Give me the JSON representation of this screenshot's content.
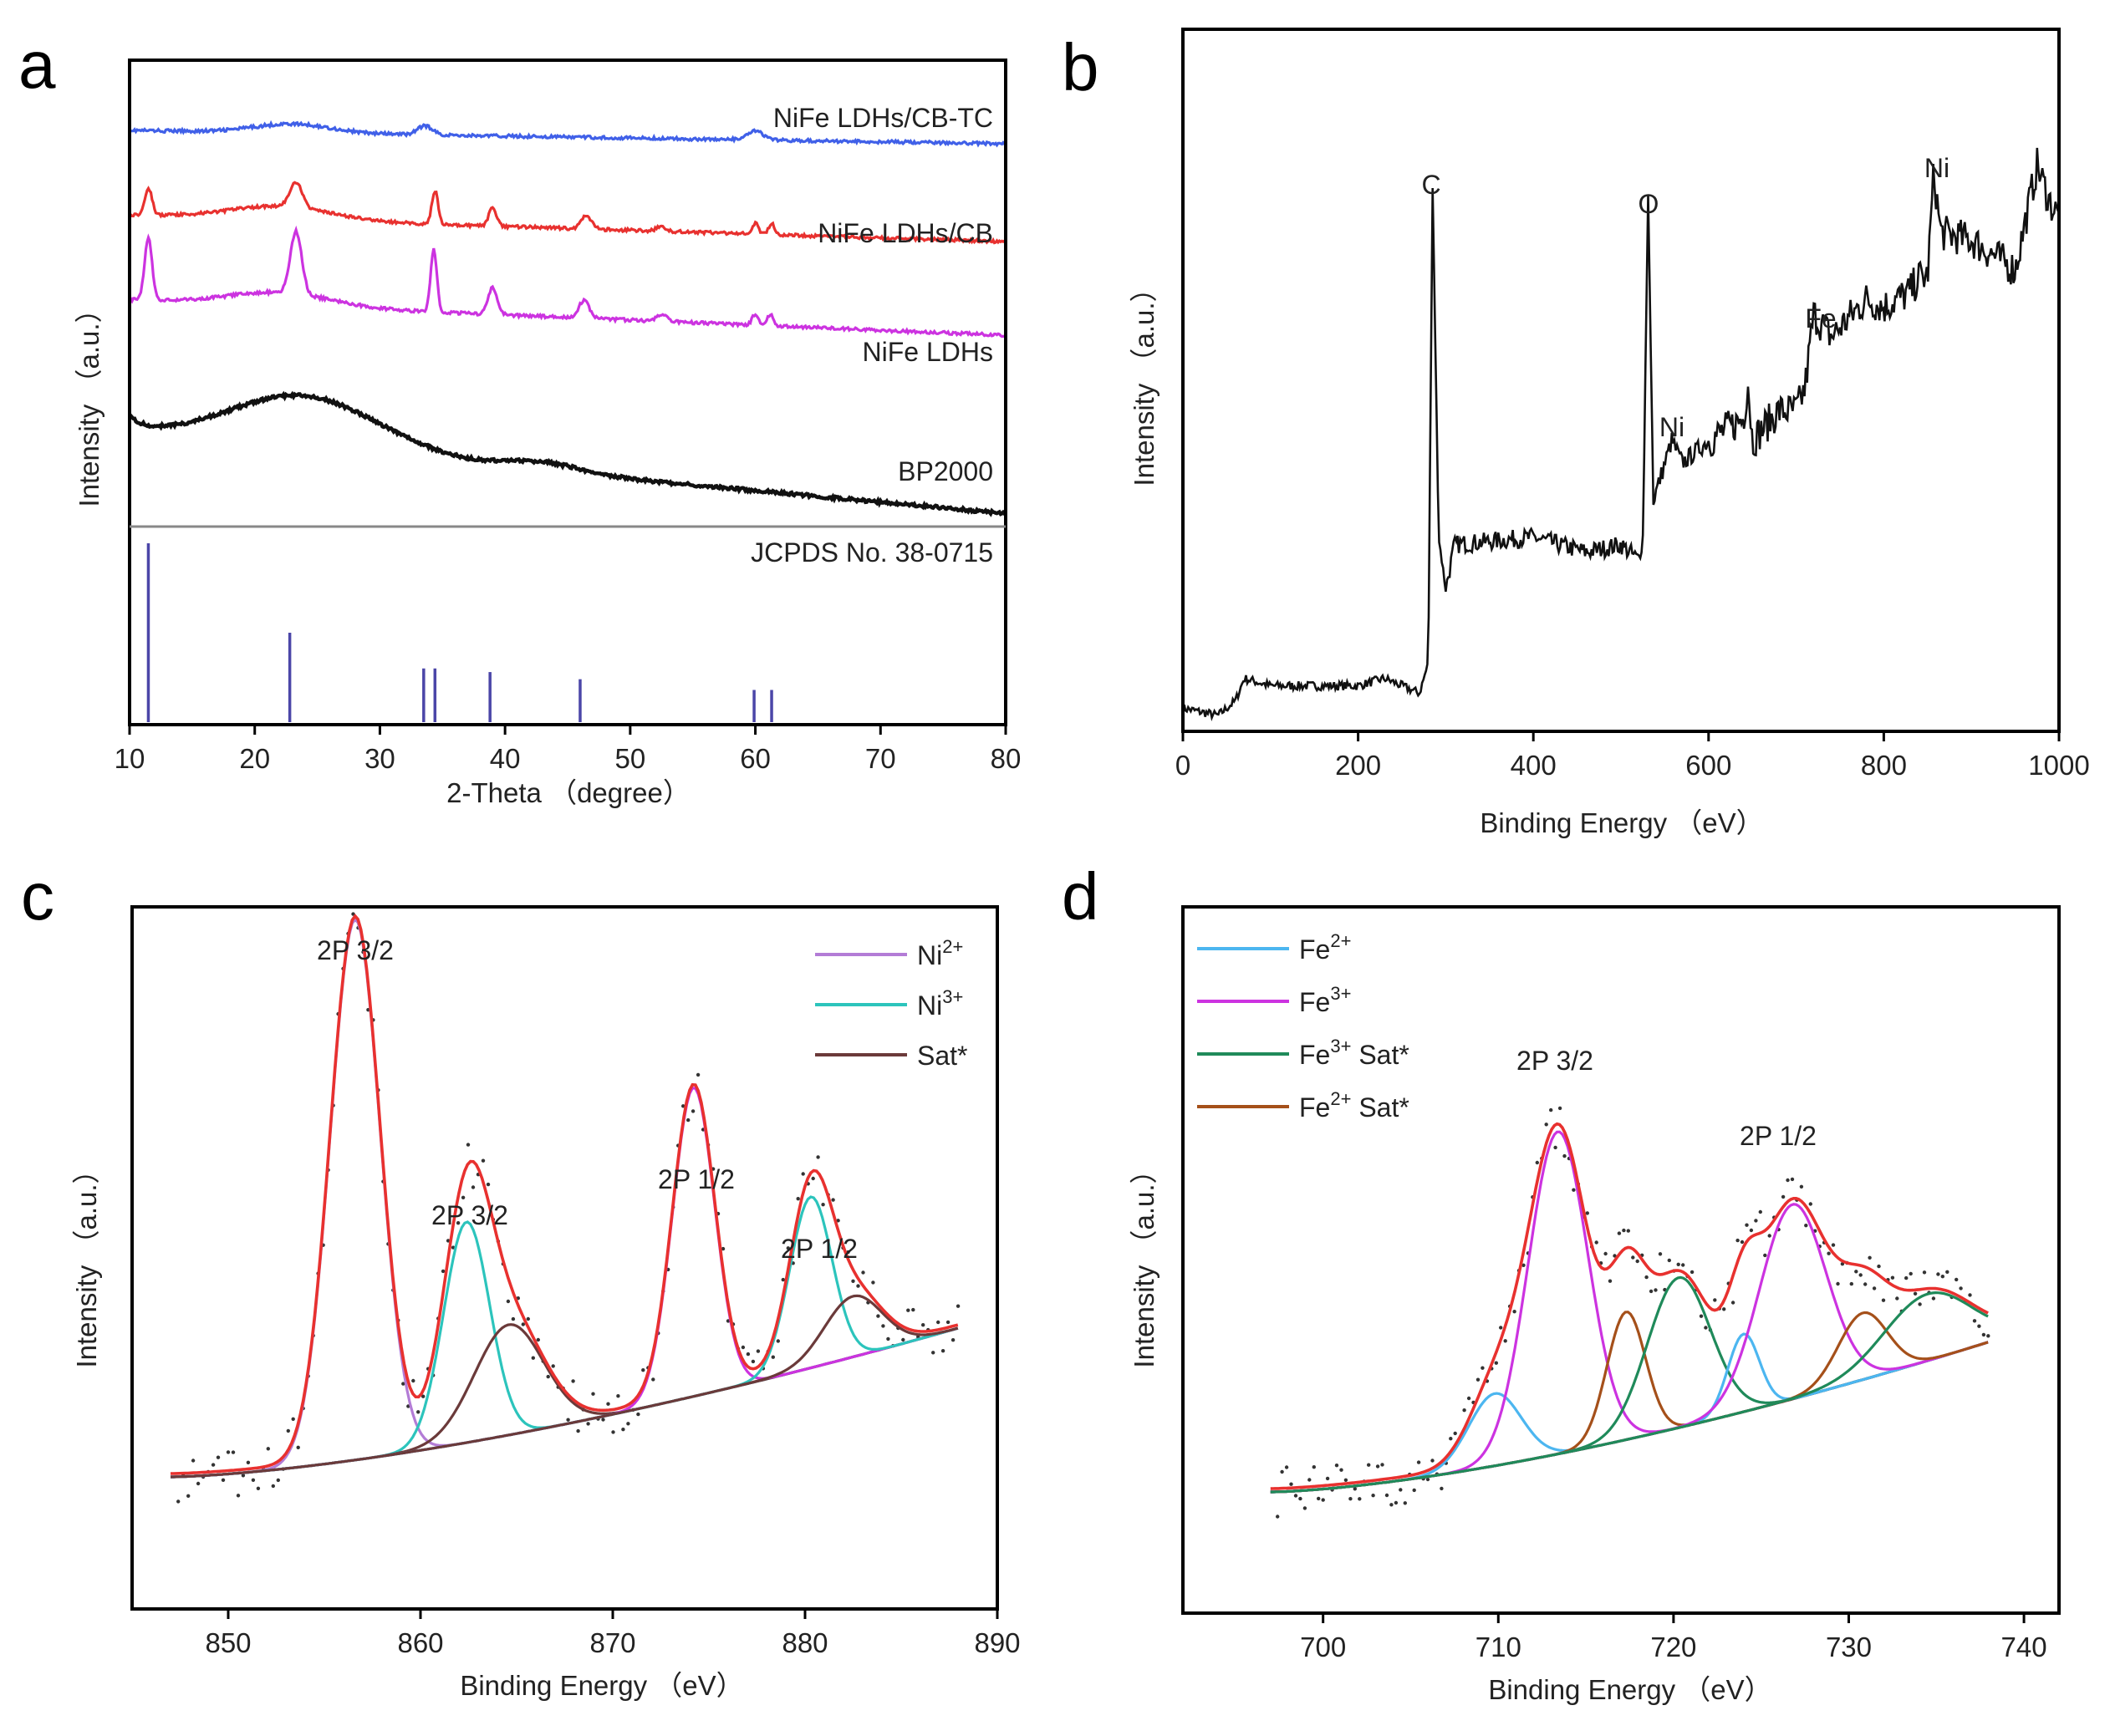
{
  "colors": {
    "red": "#e8312f",
    "blue": "#4060e8",
    "magenta": "#cc33e0",
    "black": "#111111",
    "ref": "#4b46a8",
    "teal": "#2cc4bc",
    "brown": "#6b3a3a",
    "lightblue": "#4cb6f0",
    "purple_light": "#b37cd6",
    "green": "#1f8a5a",
    "orange_brown": "#a5501a"
  },
  "chart_data": [
    {
      "panel": "a",
      "type": "line",
      "xlabel": "2-Theta （degree）",
      "ylabel": "Intensity （a.u.）",
      "xlim": [
        10,
        80
      ],
      "xticks": [
        10,
        20,
        30,
        40,
        50,
        60,
        70,
        80
      ],
      "series": [
        {
          "name": "NiFe LDHs/CB-TC",
          "color": "#4060e8",
          "baseline_start": 0.88,
          "baseline_end": 0.85,
          "peaks": [
            [
              23,
              0.02,
              3
            ],
            [
              33.6,
              0.02,
              0.6
            ],
            [
              60,
              0.02,
              0.6
            ]
          ]
        },
        {
          "name": "NiFe LDHs/CB",
          "color": "#e8312f",
          "baseline_start": 0.69,
          "baseline_end": 0.63,
          "peaks": [
            [
              11.5,
              0.06,
              0.3
            ],
            [
              23.3,
              0.055,
              0.5
            ],
            [
              34.4,
              0.075,
              0.25
            ],
            [
              39,
              0.04,
              0.3
            ],
            [
              46.5,
              0.03,
              0.4
            ],
            [
              52.5,
              0.01,
              0.4
            ],
            [
              60,
              0.025,
              0.25
            ],
            [
              61.3,
              0.025,
              0.25
            ],
            [
              22,
              0.03,
              4
            ]
          ]
        },
        {
          "name": "NiFe LDHs",
          "color": "#cc33e0",
          "baseline_start": 0.5,
          "baseline_end": 0.42,
          "peaks": [
            [
              11.5,
              0.14,
              0.3
            ],
            [
              23.3,
              0.14,
              0.45
            ],
            [
              34.3,
              0.14,
              0.25
            ],
            [
              39,
              0.06,
              0.35
            ],
            [
              46.3,
              0.04,
              0.4
            ],
            [
              52.5,
              0.015,
              0.4
            ],
            [
              60,
              0.025,
              0.25
            ],
            [
              61.2,
              0.025,
              0.25
            ],
            [
              22,
              0.03,
              4
            ]
          ]
        },
        {
          "name": "BP2000",
          "color": "#111111",
          "baseline_start": 0.2,
          "baseline_end": 0.02,
          "peaks": [
            [
              24,
              0.12,
              6
            ],
            [
              43,
              0.02,
              3
            ]
          ]
        }
      ],
      "reference": {
        "name": "JCPDS No. 38-0715",
        "positions": [
          11.5,
          22.8,
          33.5,
          34.4,
          38.8,
          46,
          59.9,
          61.3
        ],
        "intensities": [
          1.0,
          0.5,
          0.3,
          0.3,
          0.28,
          0.24,
          0.18,
          0.18
        ]
      }
    },
    {
      "panel": "b",
      "type": "line",
      "xlabel": "Binding Energy （eV）",
      "ylabel": "Intensity （a.u.）",
      "xlim": [
        0,
        1000
      ],
      "xticks": [
        0,
        200,
        400,
        600,
        800,
        1000
      ],
      "ylim": [
        0,
        1
      ],
      "points": [
        [
          0,
          0.02
        ],
        [
          40,
          0.01
        ],
        [
          60,
          0.03
        ],
        [
          70,
          0.06
        ],
        [
          100,
          0.05
        ],
        [
          200,
          0.05
        ],
        [
          230,
          0.06
        ],
        [
          270,
          0.04
        ],
        [
          280,
          0.08
        ],
        [
          285,
          0.72
        ],
        [
          292,
          0.25
        ],
        [
          300,
          0.18
        ],
        [
          310,
          0.24
        ],
        [
          400,
          0.25
        ],
        [
          460,
          0.23
        ],
        [
          500,
          0.24
        ],
        [
          520,
          0.22
        ],
        [
          525,
          0.25
        ],
        [
          531,
          0.71
        ],
        [
          537,
          0.3
        ],
        [
          545,
          0.33
        ],
        [
          558,
          0.38
        ],
        [
          570,
          0.35
        ],
        [
          600,
          0.38
        ],
        [
          640,
          0.41
        ],
        [
          645,
          0.46
        ],
        [
          650,
          0.38
        ],
        [
          680,
          0.42
        ],
        [
          700,
          0.42
        ],
        [
          710,
          0.45
        ],
        [
          720,
          0.55
        ],
        [
          740,
          0.52
        ],
        [
          780,
          0.57
        ],
        [
          800,
          0.56
        ],
        [
          830,
          0.58
        ],
        [
          840,
          0.6
        ],
        [
          850,
          0.6
        ],
        [
          857,
          0.74
        ],
        [
          865,
          0.66
        ],
        [
          900,
          0.65
        ],
        [
          950,
          0.61
        ],
        [
          975,
          0.75
        ],
        [
          990,
          0.7
        ],
        [
          1000,
          0.68
        ]
      ],
      "annotations": [
        "C",
        "O",
        "Ni",
        "Fe",
        "Ni"
      ]
    },
    {
      "panel": "c",
      "type": "line",
      "xlabel": "Binding Energy （eV）",
      "ylabel": "Intensity （a.u.）",
      "xlim": [
        845,
        890
      ],
      "xticks": [
        850,
        860,
        870,
        880,
        890
      ],
      "legend": [
        {
          "label": "Ni",
          "sup": "2+",
          "color": "#b37cd6"
        },
        {
          "label": "Ni",
          "sup": "3+",
          "color": "#2cc4bc"
        },
        {
          "label": "Sat*",
          "sup": "",
          "color": "#6b3a3a"
        }
      ],
      "annotations": [
        "2P 3/2",
        "2P 3/2",
        "2P 1/2",
        "2P 1/2"
      ],
      "peaks": [
        {
          "component": "Ni2+",
          "center": 856.6,
          "height": 0.98,
          "width": 1.3,
          "color": "#b37cd6"
        },
        {
          "component": "Ni3+",
          "center": 862.4,
          "height": 0.4,
          "width": 1.2,
          "color": "#2cc4bc"
        },
        {
          "component": "Sat*",
          "center": 864.6,
          "height": 0.2,
          "width": 1.8,
          "color": "#6b3a3a"
        },
        {
          "component": "Ni2+",
          "center": 874.2,
          "height": 0.56,
          "width": 1.1,
          "color": "#cc33e0"
        },
        {
          "component": "Ni3+",
          "center": 880.3,
          "height": 0.31,
          "width": 1.1,
          "color": "#2cc4bc"
        },
        {
          "component": "Sat*",
          "center": 882.5,
          "height": 0.11,
          "width": 1.5,
          "color": "#6b3a3a"
        }
      ],
      "baseline": [
        [
          847,
          0.05
        ],
        [
          888,
          0.32
        ]
      ]
    },
    {
      "panel": "d",
      "type": "line",
      "xlabel": "Binding Energy （eV）",
      "ylabel": "Intensity （a.u.）",
      "xlim": [
        692,
        742
      ],
      "xticks": [
        700,
        710,
        720,
        730,
        740
      ],
      "legend": [
        {
          "label": "Fe",
          "sup": "2+",
          "suffix": "",
          "color": "#4cb6f0"
        },
        {
          "label": "Fe",
          "sup": "3+",
          "suffix": "",
          "color": "#cc33e0"
        },
        {
          "label": "Fe",
          "sup": "3+",
          "suffix": " Sat*",
          "color": "#1f8a5a"
        },
        {
          "label": "Fe",
          "sup": "2+",
          "suffix": " Sat*",
          "color": "#a5501a"
        }
      ],
      "annotations": [
        "2P 3/2",
        "2P 1/2"
      ],
      "peaks": [
        {
          "component": "Fe2+",
          "center": 709.8,
          "height": 0.13,
          "width": 1.5,
          "color": "#4cb6f0"
        },
        {
          "component": "Fe3+",
          "center": 713.4,
          "height": 0.58,
          "width": 1.7,
          "color": "#cc33e0"
        },
        {
          "component": "Fe2+ Sat*",
          "center": 717.3,
          "height": 0.23,
          "width": 1.1,
          "color": "#a5501a"
        },
        {
          "component": "Fe3+ Sat*",
          "center": 720.3,
          "height": 0.27,
          "width": 1.8,
          "color": "#1f8a5a"
        },
        {
          "component": "Fe2+",
          "center": 724,
          "height": 0.14,
          "width": 0.9,
          "color": "#4cb6f0"
        },
        {
          "component": "Fe3+",
          "center": 726.8,
          "height": 0.35,
          "width": 1.9,
          "color": "#cc33e0"
        },
        {
          "component": "Fe2+ Sat*",
          "center": 730.8,
          "height": 0.12,
          "width": 1.4,
          "color": "#a5501a"
        },
        {
          "component": "Fe3+ Sat*",
          "center": 734.5,
          "height": 0.12,
          "width": 2.5,
          "color": "#1f8a5a"
        }
      ],
      "baseline": [
        [
          697,
          0.03
        ],
        [
          738,
          0.3
        ]
      ]
    }
  ]
}
